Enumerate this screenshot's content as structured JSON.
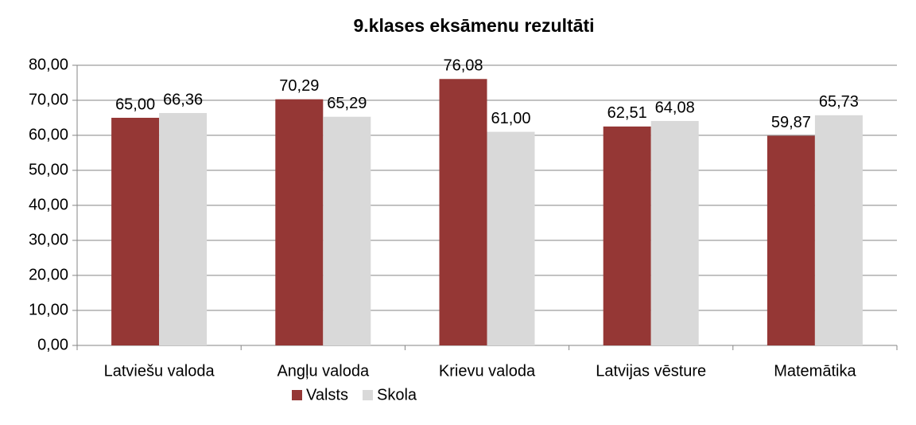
{
  "chart_data": {
    "type": "bar",
    "title": "9.klases eksāmenu rezultāti",
    "categories": [
      "Latviešu valoda",
      "Angļu valoda",
      "Krievu valoda",
      "Latvijas vēsture",
      "Matemātika"
    ],
    "series": [
      {
        "name": "Valsts",
        "color": "#953735",
        "values": [
          65.0,
          70.29,
          76.08,
          62.51,
          59.87
        ],
        "value_labels": [
          "65,00",
          "70,29",
          "76,08",
          "62,51",
          "59,87"
        ]
      },
      {
        "name": "Skola",
        "color": "#d9d9d9",
        "values": [
          66.36,
          65.29,
          61.0,
          64.08,
          65.73
        ],
        "value_labels": [
          "66,36",
          "65,29",
          "61,00",
          "64,08",
          "65,73"
        ]
      }
    ],
    "ylim": [
      0,
      80
    ],
    "yticks": [
      {
        "value": 0,
        "label": "0,00"
      },
      {
        "value": 10,
        "label": "10,00"
      },
      {
        "value": 20,
        "label": "20,00"
      },
      {
        "value": 30,
        "label": "30,00"
      },
      {
        "value": 40,
        "label": "40,00"
      },
      {
        "value": 50,
        "label": "50,00"
      },
      {
        "value": 60,
        "label": "60,00"
      },
      {
        "value": 70,
        "label": "70,00"
      },
      {
        "value": 80,
        "label": "80,00"
      }
    ],
    "grid": true,
    "legend": "bottom"
  }
}
